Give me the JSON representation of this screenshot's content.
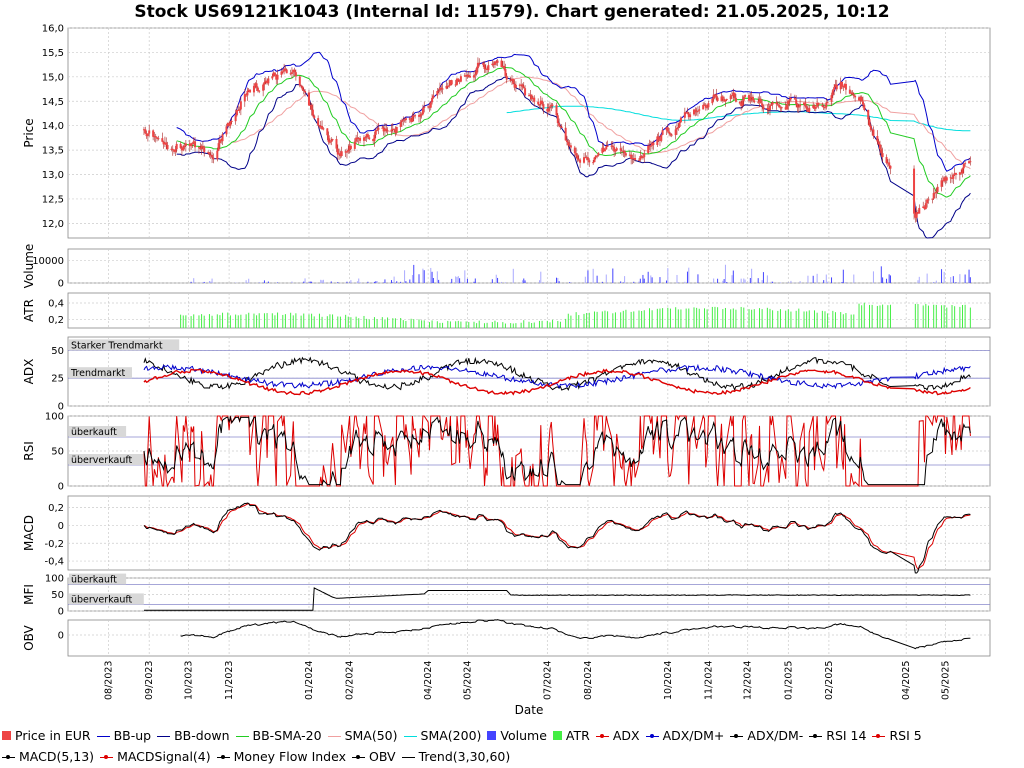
{
  "title": "Stock US69121K1043 (Internal Id: 11579). Chart generated: 21.05.2025, 10:12",
  "chart_data": {
    "type": "line",
    "xlabel": "Date",
    "x_ticks": [
      "08/2023",
      "09/2023",
      "10/2023",
      "11/2023",
      "01/2024",
      "02/2024",
      "04/2024",
      "05/2024",
      "07/2024",
      "08/2024",
      "10/2024",
      "11/2024",
      "12/2024",
      "01/2025",
      "02/2025",
      "04/2025",
      "05/2025"
    ],
    "price_panel": {
      "ylabel": "Price",
      "ylim": [
        11.7,
        16.0
      ],
      "y_ticks": [
        "12,0",
        "12,5",
        "13,0",
        "13,5",
        "14,0",
        "14,5",
        "15,0",
        "15,5",
        "16,0"
      ],
      "close_approx": [
        [
          "2023-08-28",
          14.0
        ],
        [
          "2023-09-10",
          13.6
        ],
        [
          "2023-10-01",
          13.6
        ],
        [
          "2023-10-20",
          13.4
        ],
        [
          "2023-11-10",
          14.5
        ],
        [
          "2023-11-30",
          14.9
        ],
        [
          "2023-12-20",
          15.1
        ],
        [
          "2024-01-08",
          14.0
        ],
        [
          "2024-01-25",
          13.4
        ],
        [
          "2024-02-15",
          13.8
        ],
        [
          "2024-03-10",
          14.0
        ],
        [
          "2024-04-01",
          14.4
        ],
        [
          "2024-04-20",
          14.9
        ],
        [
          "2024-05-10",
          15.3
        ],
        [
          "2024-05-25",
          15.2
        ],
        [
          "2024-06-15",
          14.6
        ],
        [
          "2024-07-05",
          14.3
        ],
        [
          "2024-07-25",
          13.2
        ],
        [
          "2024-08-15",
          13.5
        ],
        [
          "2024-09-05",
          13.3
        ],
        [
          "2024-09-25",
          13.8
        ],
        [
          "2024-10-15",
          14.2
        ],
        [
          "2024-11-05",
          14.5
        ],
        [
          "2024-11-25",
          14.6
        ],
        [
          "2024-12-15",
          14.4
        ],
        [
          "2025-01-05",
          14.5
        ],
        [
          "2025-01-25",
          14.4
        ],
        [
          "2025-02-10",
          14.8
        ],
        [
          "2025-02-25",
          14.6
        ],
        [
          "2025-03-10",
          13.7
        ],
        [
          "2025-04-08",
          12.2
        ],
        [
          "2025-04-20",
          12.5
        ],
        [
          "2025-05-10",
          13.1
        ],
        [
          "2025-05-20",
          13.2
        ]
      ]
    },
    "volume_panel": {
      "ylabel": "Volume",
      "y_ticks": [
        "0",
        "10000"
      ]
    },
    "atr_panel": {
      "ylabel": "ATR",
      "y_ticks": [
        "0,2",
        "0,4"
      ]
    },
    "adx_panel": {
      "ylabel": "ADX",
      "y_ticks": [
        "0",
        "25",
        "50"
      ],
      "bands": [
        "Starker Trendmarkt",
        "Trendmarkt"
      ]
    },
    "rsi_panel": {
      "ylabel": "RSI",
      "y_ticks": [
        "0",
        "50",
        "100"
      ],
      "bands": [
        "überkauft",
        "überverkauft"
      ]
    },
    "macd_panel": {
      "ylabel": "MACD",
      "y_ticks": [
        "-0,4",
        "-0,2",
        "0",
        "0,2"
      ]
    },
    "mfi_panel": {
      "ylabel": "MFI",
      "y_ticks": [
        "0",
        "50",
        "100"
      ],
      "bands": [
        "überkauft",
        "überverkauft"
      ]
    },
    "obv_panel": {
      "ylabel": "OBV",
      "y_ticks": [
        "0"
      ]
    },
    "legend": [
      {
        "label": "Price in EUR",
        "color": "#ee4444",
        "kind": "box"
      },
      {
        "label": "BB-up",
        "color": "#0000cc",
        "kind": "line"
      },
      {
        "label": "BB-down",
        "color": "#000088",
        "kind": "line"
      },
      {
        "label": "BB-SMA-20",
        "color": "#22cc22",
        "kind": "line"
      },
      {
        "label": "SMA(50)",
        "color": "#f0a0a0",
        "kind": "line"
      },
      {
        "label": "SMA(200)",
        "color": "#00dddd",
        "kind": "line"
      },
      {
        "label": "Volume",
        "color": "#4444ff",
        "kind": "box"
      },
      {
        "label": "ATR",
        "color": "#44ee44",
        "kind": "box"
      },
      {
        "label": "ADX",
        "color": "#dd0000",
        "kind": "dotline"
      },
      {
        "label": "ADX/DM+",
        "color": "#0000cc",
        "kind": "dotline"
      },
      {
        "label": "ADX/DM-",
        "color": "#000000",
        "kind": "dotline"
      },
      {
        "label": "RSI 14",
        "color": "#000000",
        "kind": "dotline"
      },
      {
        "label": "RSI 5",
        "color": "#dd0000",
        "kind": "dotline"
      },
      {
        "label": "MACD(5,13)",
        "color": "#000000",
        "kind": "dotline"
      },
      {
        "label": "MACDSignal(4)",
        "color": "#dd0000",
        "kind": "dotline"
      },
      {
        "label": "Money Flow Index",
        "color": "#000000",
        "kind": "dotline"
      },
      {
        "label": "OBV",
        "color": "#000000",
        "kind": "dotline"
      },
      {
        "label": "Trend(3,30,60)",
        "color": "#000000",
        "kind": "line"
      }
    ]
  }
}
